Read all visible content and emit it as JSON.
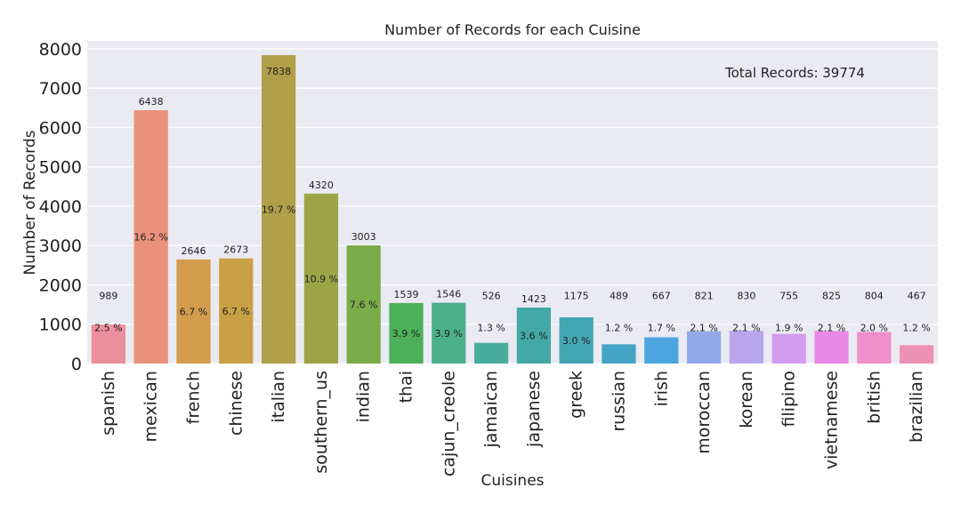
{
  "chart_data": {
    "type": "bar",
    "title": "Number of Records for each Cuisine",
    "xlabel": "Cuisines",
    "ylabel": "Number of Records",
    "ylim": [
      0,
      8200
    ],
    "yticks": [
      0,
      1000,
      2000,
      3000,
      4000,
      5000,
      6000,
      7000,
      8000
    ],
    "grid": true,
    "annotation": "Total Records: 39774",
    "categories": [
      "spanish",
      "mexican",
      "french",
      "chinese",
      "italian",
      "southern_us",
      "indian",
      "thai",
      "cajun_creole",
      "jamaican",
      "japanese",
      "greek",
      "russian",
      "irish",
      "moroccan",
      "korean",
      "filipino",
      "vietnamese",
      "british",
      "brazilian"
    ],
    "values": [
      989,
      6438,
      2646,
      2673,
      7838,
      4320,
      3003,
      1539,
      1546,
      526,
      1423,
      1175,
      489,
      667,
      821,
      830,
      755,
      825,
      804,
      467
    ],
    "percent_labels": [
      "2.5 %",
      "16.2 %",
      "6.7 %",
      "6.7 %",
      "19.7 %",
      "10.9 %",
      "7.6 %",
      "3.9 %",
      "3.9 %",
      "1.3 %",
      "3.6 %",
      "3.0 %",
      "1.2 %",
      "1.7 %",
      "2.1 %",
      "2.1 %",
      "1.9 %",
      "2.1 %",
      "2.0 %",
      "1.2 %"
    ],
    "colors": [
      "#ec8f9c",
      "#e9917a",
      "#d49c4e",
      "#c9a046",
      "#b19f49",
      "#9ba547",
      "#7aac48",
      "#4cb05a",
      "#4cb08b",
      "#48ad9d",
      "#43a9a7",
      "#44a6b3",
      "#45a4c4",
      "#4ca5e1",
      "#92a9e8",
      "#b8a6ed",
      "#d39cee",
      "#ea88e6",
      "#ee8ecb",
      "#ed91b4"
    ]
  }
}
